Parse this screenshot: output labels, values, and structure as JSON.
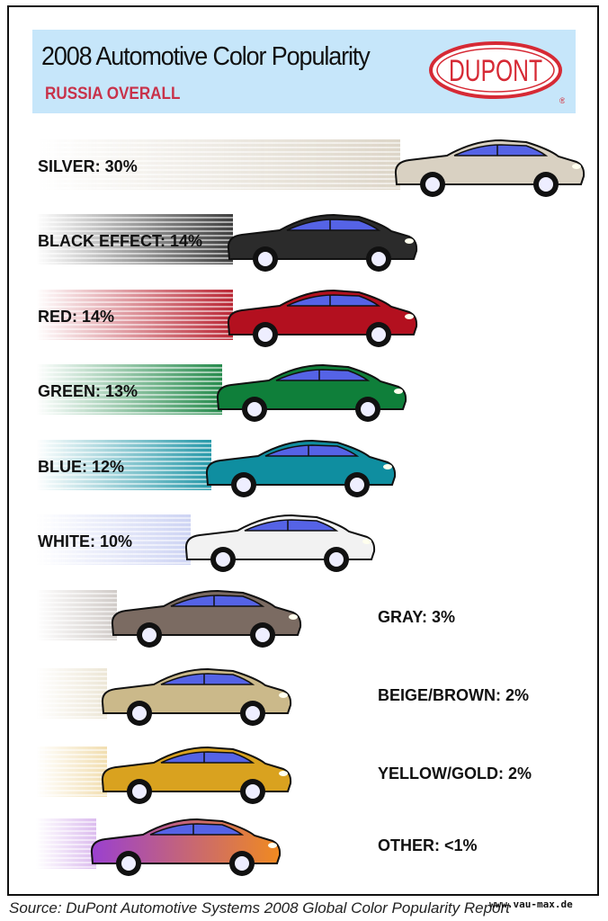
{
  "header": {
    "title": "2008 Automotive Color Popularity",
    "subtitle": "RUSSIA OVERALL",
    "logo_text": "DU PONT"
  },
  "chart_data": {
    "type": "bar",
    "title": "2008 Automotive Color Popularity",
    "subtitle": "RUSSIA OVERALL",
    "categories": [
      "SILVER",
      "BLACK EFFECT",
      "RED",
      "GREEN",
      "BLUE",
      "WHITE",
      "GRAY",
      "BEIGE/BROWN",
      "YELLOW/GOLD",
      "OTHER"
    ],
    "values": [
      30,
      14,
      14,
      13,
      12,
      10,
      3,
      2,
      2,
      1
    ],
    "labels": [
      "SILVER: 30%",
      "BLACK EFFECT: 14%",
      "RED: 14%",
      "GREEN: 13%",
      "BLUE: 12%",
      "WHITE: 10%",
      "GRAY: 3%",
      "BEIGE/BROWN: 2%",
      "YELLOW/GOLD: 2%",
      "OTHER: <1%"
    ],
    "colors": [
      "#d9d1c2",
      "#2b2b2b",
      "#b3101f",
      "#0f7f3a",
      "#0f8ea0",
      "#f2f2f2",
      "#7b6b62",
      "#cbb98a",
      "#d9a21f",
      "#9a40d0"
    ]
  },
  "footer": {
    "source": "Source: DuPont Automotive Systems 2008 Global Color Popularity Report",
    "watermark": "www.vau-max.de"
  }
}
